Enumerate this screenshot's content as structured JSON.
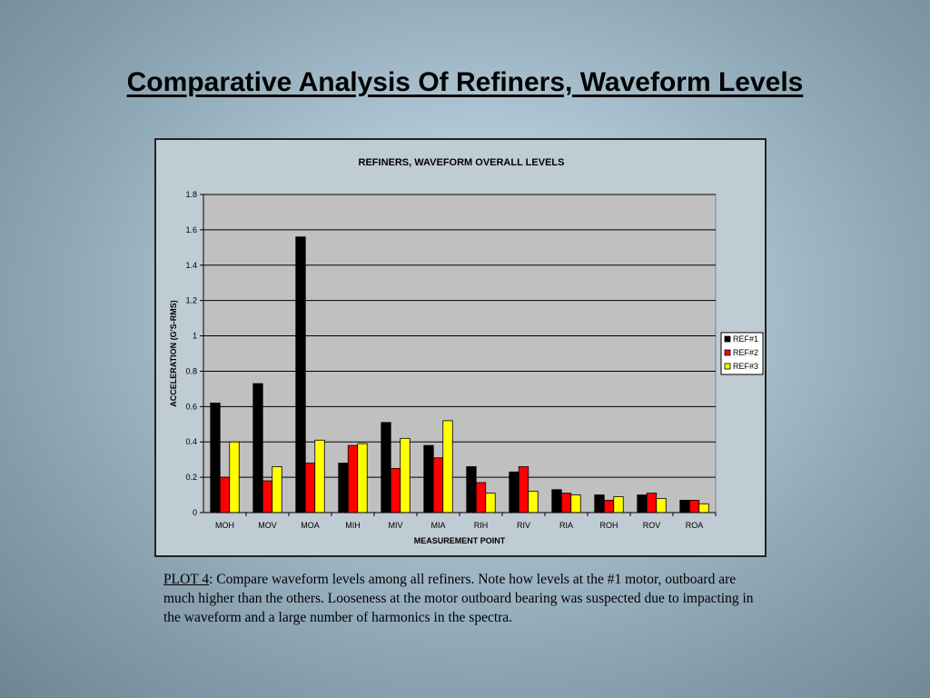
{
  "slide_title": "Comparative Analysis Of Refiners, Waveform Levels",
  "caption": {
    "label": "PLOT 4",
    "text": ":  Compare waveform levels among all refiners.  Note how levels at the #1 motor, outboard are much higher than the others.  Looseness at the motor outboard bearing was suspected due to impacting in the waveform and a large number of harmonics in the spectra."
  },
  "chart_data": {
    "type": "bar",
    "title": "REFINERS, WAVEFORM OVERALL LEVELS",
    "xlabel": "MEASUREMENT POINT",
    "ylabel": "ACCELERATION (G'S-RMS)",
    "ylim": [
      0,
      1.8
    ],
    "yticks": [
      "0",
      "0.2",
      "0.4",
      "0.6",
      "0.8",
      "1",
      "1.2",
      "1.4",
      "1.6",
      "1.8"
    ],
    "grid": true,
    "legend_position": "right",
    "categories": [
      "MOH",
      "MOV",
      "MOA",
      "MIH",
      "MIV",
      "MIA",
      "RIH",
      "RIV",
      "RIA",
      "ROH",
      "ROV",
      "ROA"
    ],
    "series": [
      {
        "name": "REF#1",
        "color": "#000000",
        "values": [
          0.62,
          0.73,
          1.56,
          0.28,
          0.51,
          0.38,
          0.26,
          0.23,
          0.13,
          0.1,
          0.1,
          0.07
        ]
      },
      {
        "name": "REF#2",
        "color": "#ff0000",
        "values": [
          0.2,
          0.18,
          0.28,
          0.38,
          0.25,
          0.31,
          0.17,
          0.26,
          0.11,
          0.07,
          0.11,
          0.07
        ]
      },
      {
        "name": "REF#3",
        "color": "#ffff00",
        "values": [
          0.4,
          0.26,
          0.41,
          0.39,
          0.42,
          0.52,
          0.11,
          0.12,
          0.1,
          0.09,
          0.08,
          0.05
        ]
      }
    ]
  }
}
